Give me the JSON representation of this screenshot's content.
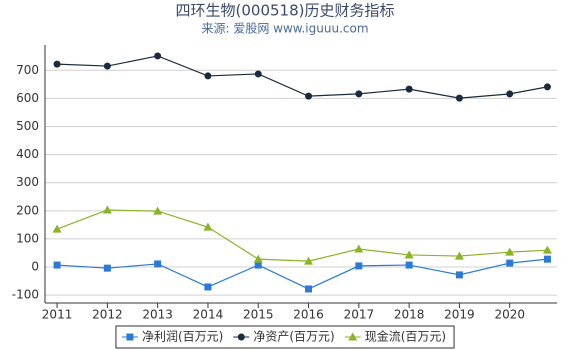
{
  "chart_data": {
    "type": "line",
    "title": "四环生物(000518)历史财务指标",
    "subtitle": "来源: 爱股网 www.iguuu.com",
    "x": [
      2011,
      2012,
      2013,
      2014,
      2015,
      2016,
      2017,
      2018,
      2019,
      2020,
      2020.75
    ],
    "xlim": [
      2010.76,
      2020.94
    ],
    "xticks": [
      2011,
      2012,
      2013,
      2014,
      2015,
      2016,
      2017,
      2018,
      2019,
      2020
    ],
    "ylim": [
      -128,
      790
    ],
    "yticks": [
      -100,
      0,
      100,
      200,
      300,
      400,
      500,
      600,
      700
    ],
    "grid": true,
    "legend": "bottom",
    "series": [
      {
        "name": "净利润(百万元)",
        "color": "#2b7bd6",
        "marker": "square",
        "values": [
          7,
          -4,
          11,
          -71,
          7,
          -78,
          4,
          7,
          -28,
          14,
          28
        ]
      },
      {
        "name": "净资产(百万元)",
        "color": "#1b2a3d",
        "marker": "circle",
        "values": [
          722,
          715,
          751,
          680,
          687,
          608,
          616,
          633,
          601,
          616,
          641
        ]
      },
      {
        "name": "现金流(百万元)",
        "color": "#8ab425",
        "marker": "triangle",
        "values": [
          135,
          203,
          199,
          142,
          28,
          21,
          64,
          43,
          39,
          53,
          60
        ]
      }
    ]
  }
}
